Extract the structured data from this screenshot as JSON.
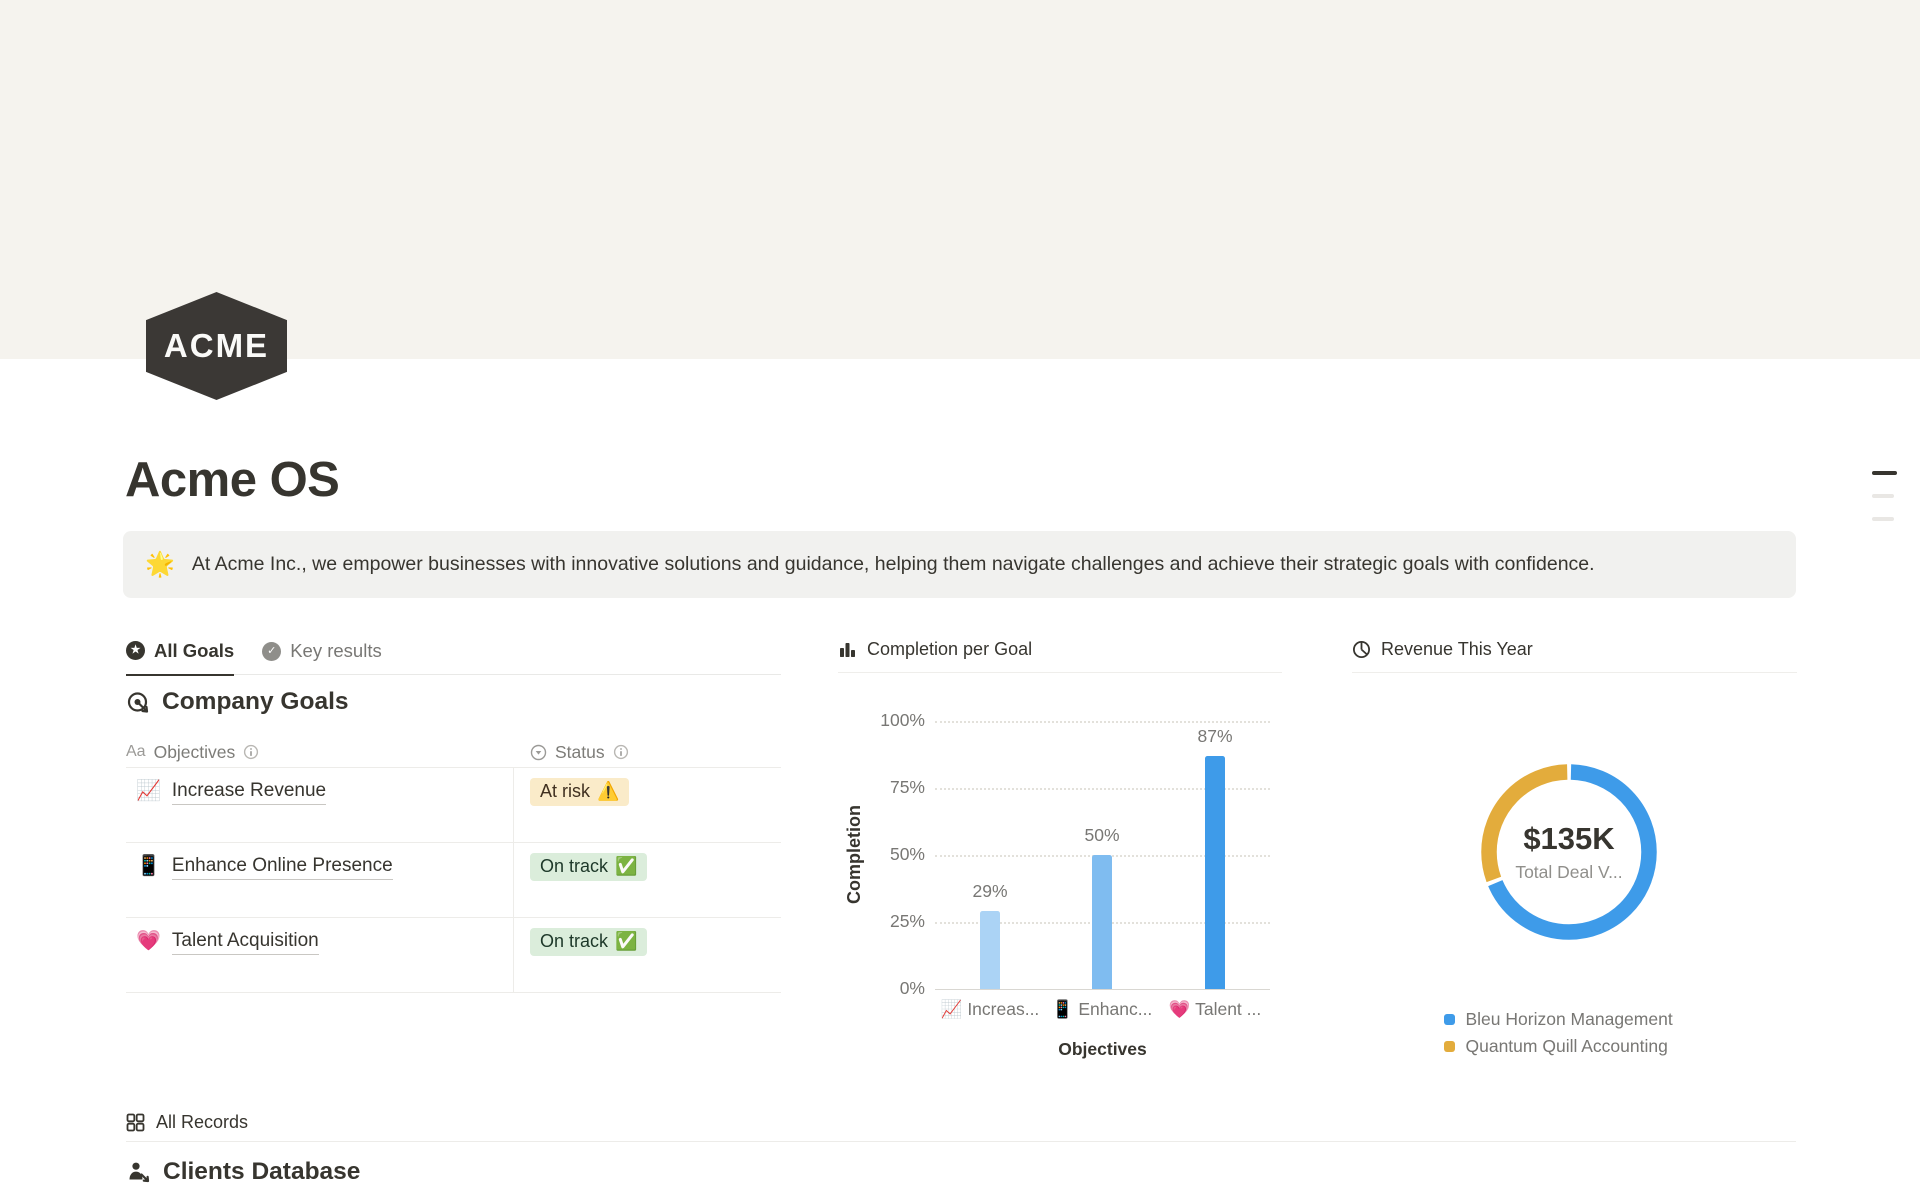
{
  "page": {
    "logo_text": "ACME",
    "title": "Acme OS",
    "callout": {
      "emoji": "🌟",
      "text": "At Acme Inc., we empower businesses with innovative solutions and guidance, helping them navigate challenges and achieve their strategic goals with confidence."
    }
  },
  "tabs": [
    {
      "label": "All Goals",
      "active": true
    },
    {
      "label": "Key results",
      "active": false
    }
  ],
  "goals_section": {
    "heading": "Company Goals",
    "table": {
      "columns": [
        {
          "label": "Objectives",
          "type_icon": "Aa"
        },
        {
          "label": "Status"
        }
      ],
      "rows": [
        {
          "emoji": "📈",
          "title": "Increase Revenue",
          "status": "At risk",
          "status_emoji": "⚠️",
          "status_type": "warning"
        },
        {
          "emoji": "📱",
          "title": "Enhance Online Presence",
          "status": "On track",
          "status_emoji": "✅",
          "status_type": "success"
        },
        {
          "emoji": "💗",
          "title": "Talent Acquisition",
          "status": "On track",
          "status_emoji": "✅",
          "status_type": "success"
        }
      ]
    }
  },
  "records_section": {
    "label": "All Records"
  },
  "clients_section": {
    "heading": "Clients Database"
  },
  "colors": {
    "cover": "#F5F3EE",
    "text_dark": "#37352F",
    "text_gray": "#787774",
    "divider": "#EDECE9",
    "badge_warning_bg": "#FAEBC9",
    "badge_success_bg": "#DBEDDB"
  },
  "chart_data": [
    {
      "type": "bar",
      "title": "Completion per Goal",
      "categories": [
        {
          "emoji": "📈",
          "label": "Increas..."
        },
        {
          "emoji": "📱",
          "label": "Enhanc..."
        },
        {
          "emoji": "💗",
          "label": "Talent ..."
        }
      ],
      "values": [
        29,
        50,
        87
      ],
      "value_labels": [
        "29%",
        "50%",
        "87%"
      ],
      "bar_colors": [
        "#ABD3F5",
        "#7FBCF0",
        "#3E9BE9"
      ],
      "xlabel": "Objectives",
      "ylabel": "Completion",
      "ylim": [
        0,
        100
      ],
      "yticks": [
        {
          "value": 0,
          "label": "0%"
        },
        {
          "value": 25,
          "label": "25%"
        },
        {
          "value": 50,
          "label": "50%"
        },
        {
          "value": 75,
          "label": "75%"
        },
        {
          "value": 100,
          "label": "100%"
        }
      ],
      "grid": "horizontal-dotted",
      "legend_position": "none"
    },
    {
      "type": "donut",
      "title": "Revenue This Year",
      "center_value": "$135K",
      "center_label": "Total Deal V...",
      "legend_position": "bottom",
      "segments": [
        {
          "name": "Bleu Horizon Management",
          "color": "#3E9BE9",
          "fraction": 0.69
        },
        {
          "name": "Quantum Quill Accounting",
          "color": "#E3AC3C",
          "fraction": 0.31
        }
      ]
    }
  ]
}
